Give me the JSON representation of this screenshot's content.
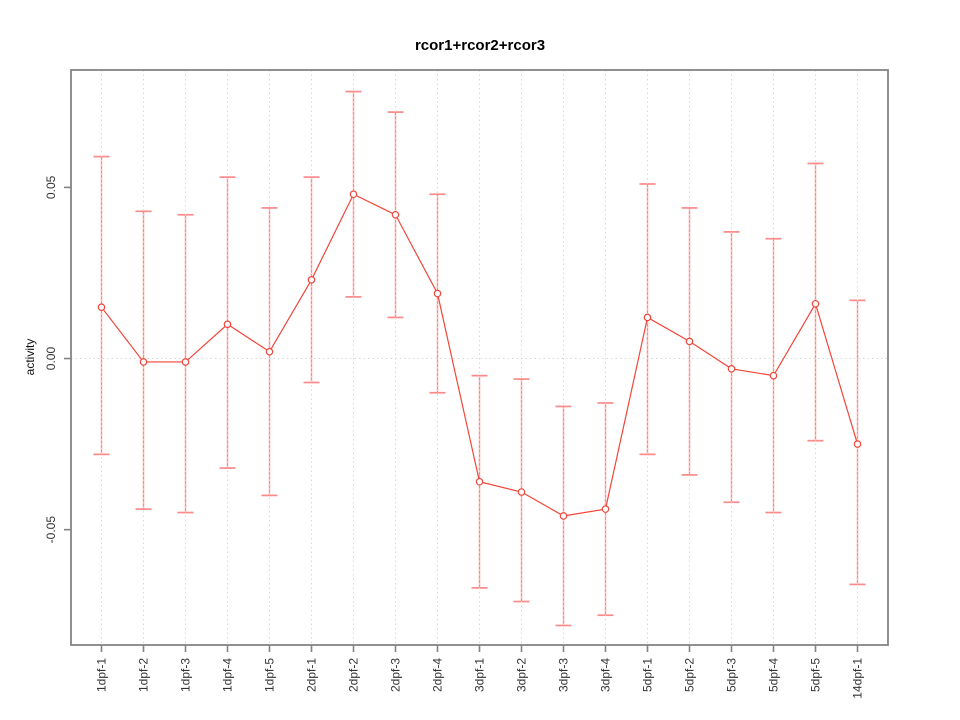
{
  "chart_data": {
    "type": "line",
    "title": "rcor1+rcor2+rcor3",
    "ylabel": "activity",
    "xlabel": "",
    "categories": [
      "1dpf-1",
      "1dpf-2",
      "1dpf-3",
      "1dpf-4",
      "1dpf-5",
      "2dpf-1",
      "2dpf-2",
      "2dpf-3",
      "2dpf-4",
      "3dpf-1",
      "3dpf-2",
      "3dpf-3",
      "3dpf-4",
      "5dpf-1",
      "5dpf-2",
      "5dpf-3",
      "5dpf-4",
      "5dpf-5",
      "14dpf-1"
    ],
    "series": [
      {
        "name": "activity",
        "values": [
          0.015,
          -0.001,
          -0.001,
          0.01,
          0.002,
          0.023,
          0.048,
          0.042,
          0.019,
          -0.036,
          -0.039,
          -0.046,
          -0.044,
          0.012,
          0.005,
          -0.003,
          -0.005,
          0.016,
          -0.025
        ],
        "error_high": [
          0.059,
          0.043,
          0.042,
          0.053,
          0.044,
          0.053,
          0.078,
          0.072,
          0.048,
          -0.005,
          -0.006,
          -0.014,
          -0.013,
          0.051,
          0.044,
          0.037,
          0.035,
          0.057,
          0.017
        ],
        "error_low": [
          -0.028,
          -0.044,
          -0.045,
          -0.032,
          -0.04,
          -0.007,
          0.018,
          0.012,
          -0.01,
          -0.067,
          -0.071,
          -0.078,
          -0.075,
          -0.028,
          -0.034,
          -0.042,
          -0.045,
          -0.024,
          -0.066
        ]
      }
    ],
    "yticks": [
      0.05,
      0.0,
      -0.05
    ],
    "ytick_labels": [
      "0.05",
      "0.00",
      "-0.05"
    ],
    "ylim": [
      -0.0837,
      0.0843
    ],
    "zero_line": 0,
    "grid": {
      "vertical_dotted_per_category": true,
      "horizontal_dotted_at_zero": true
    },
    "legend": "none",
    "marker": "open-circle",
    "colors": {
      "line": "#f2453a",
      "marker_stroke": "#f2453a",
      "marker_fill": "#ffffff",
      "error_bar": "#f98b8b",
      "grid": "#d8d8d8",
      "box": "#848484",
      "tick": "#848484",
      "tick_label": "#333333",
      "title": "#000000",
      "background": "#ffffff"
    }
  }
}
